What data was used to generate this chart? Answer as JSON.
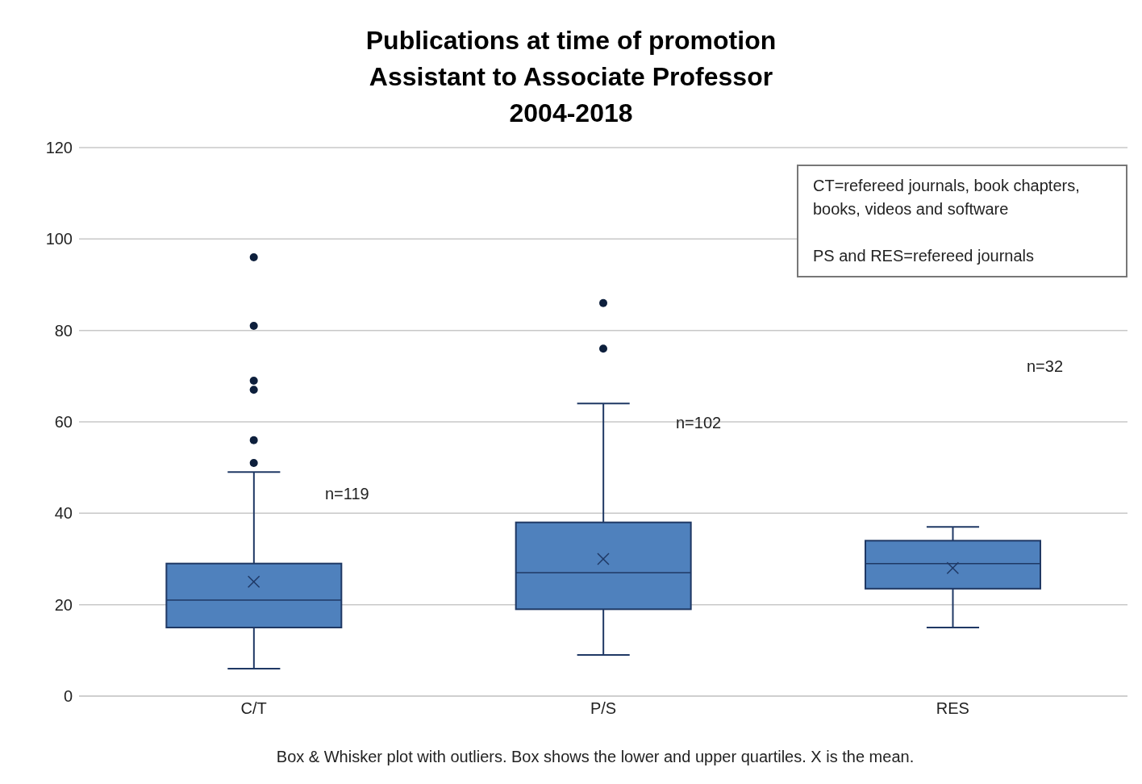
{
  "chart_data": {
    "type": "box",
    "title": "Publications at time of promotion\nAssistant to Associate Professor\n2004-2018",
    "categories": [
      "C/T",
      "P/S",
      "RES"
    ],
    "boxes": [
      {
        "low": 6,
        "q1": 15,
        "median": 21,
        "q3": 29,
        "high": 49,
        "mean": 25,
        "outliers": [
          51,
          56,
          67,
          69,
          81,
          96
        ]
      },
      {
        "low": 9,
        "q1": 19,
        "median": 27,
        "q3": 38,
        "high": 64,
        "mean": 30,
        "outliers": [
          76,
          86
        ]
      },
      {
        "low": 15,
        "q1": 23.5,
        "median": 29,
        "q3": 34,
        "high": 37,
        "mean": 28
      }
    ],
    "color": "#4f81bd",
    "ylim": [
      0,
      120
    ],
    "yticks": [
      0,
      20,
      40,
      60,
      80,
      100,
      120
    ],
    "grid": "y",
    "annotations": [
      "n=119",
      "n=102",
      "n=32",
      "CT=refereed journals, book chapters, books, videos and software",
      "PS and RES=refereed journals",
      "Box & Whisker plot with outliers. Box shows the lower and upper quartiles. X is the mean."
    ]
  }
}
